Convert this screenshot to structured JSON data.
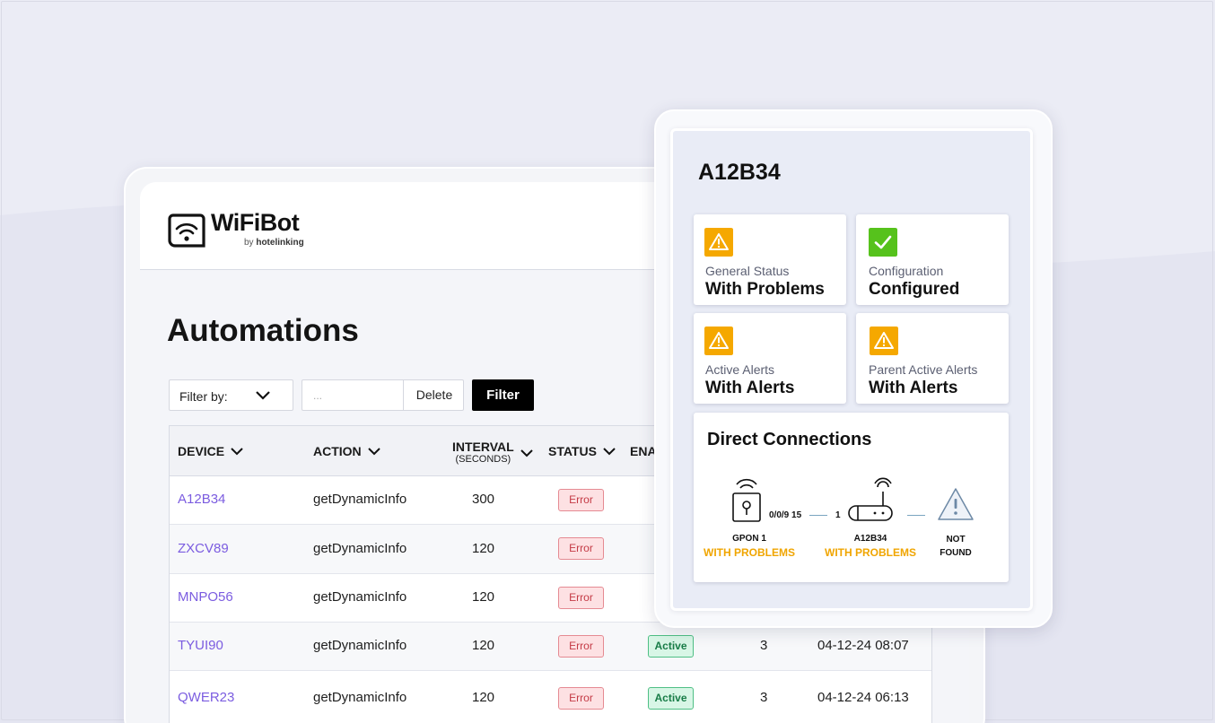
{
  "brand": {
    "name": "WiFiBot",
    "sub_prefix": "by",
    "sub_name": "hotelinking"
  },
  "page": {
    "title": "Automations"
  },
  "filters": {
    "filter_by_label": "Filter by:",
    "search_placeholder": "...",
    "delete_label": "Delete",
    "filter_button": "Filter"
  },
  "table": {
    "columns": {
      "device": "DEVICE",
      "action": "ACTION",
      "interval": "INTERVAL",
      "interval_unit": "(SECONDS)",
      "status": "STATUS",
      "enabled": "ENA"
    },
    "rows": [
      {
        "device": "A12B34",
        "action": "getDynamicInfo",
        "interval": "300",
        "status": "Error",
        "enabled": "",
        "count": "",
        "date": ""
      },
      {
        "device": "ZXCV89",
        "action": "getDynamicInfo",
        "interval": "120",
        "status": "Error",
        "enabled": "",
        "count": "",
        "date": ""
      },
      {
        "device": "MNPO56",
        "action": "getDynamicInfo",
        "interval": "120",
        "status": "Error",
        "enabled": "",
        "count": "",
        "date": ""
      },
      {
        "device": "TYUI90",
        "action": "getDynamicInfo",
        "interval": "120",
        "status": "Error",
        "enabled": "Active",
        "count": "3",
        "date": "04-12-24 08:07"
      },
      {
        "device": "QWER23",
        "action": "getDynamicInfo",
        "interval": "120",
        "status": "Error",
        "enabled": "Active",
        "count": "3",
        "date": "04-12-24 06:13"
      }
    ]
  },
  "panel": {
    "device_id": "A12B34",
    "cards": [
      {
        "icon": "warning-icon",
        "label": "General Status",
        "value": "With Problems",
        "color": "#f5a800"
      },
      {
        "icon": "check-icon",
        "label": "Configuration",
        "value": "Configured",
        "color": "#56c21c"
      },
      {
        "icon": "warning-icon",
        "label": "Active Alerts",
        "value": "With Alerts",
        "color": "#f5a800"
      },
      {
        "icon": "warning-icon",
        "label": "Parent Active Alerts",
        "value": "With Alerts",
        "color": "#f5a800"
      }
    ],
    "connections": {
      "title": "Direct Connections",
      "nodes": [
        {
          "icon": "gpon-icon",
          "name": "GPON 1",
          "status": "WITH PROBLEMS"
        },
        {
          "icon": "router-icon",
          "name": "A12B34",
          "status": "WITH PROBLEMS"
        },
        {
          "icon": "warning-outline-icon",
          "name": "NOT",
          "name2": "FOUND"
        }
      ],
      "links": [
        {
          "port": "0/0/9 15"
        },
        {
          "port": "1"
        }
      ]
    }
  },
  "colors": {
    "accent_purple": "#7b5ce0",
    "warning": "#f5a800",
    "ok": "#56c21c",
    "error_text": "#c43a45",
    "active_text": "#187c47"
  }
}
